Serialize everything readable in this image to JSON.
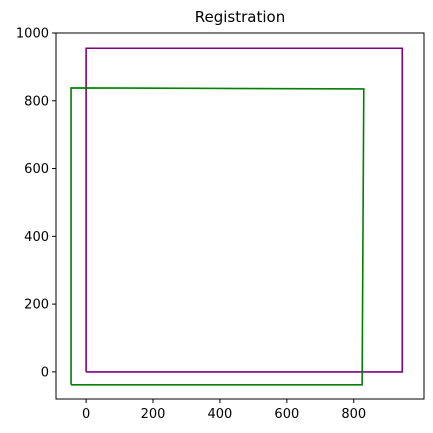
{
  "chart_data": {
    "type": "line",
    "title": "Registration",
    "xlabel": "",
    "ylabel": "",
    "xlim": [
      -90,
      1010
    ],
    "ylim": [
      -80,
      1000
    ],
    "x_ticks": [
      0,
      200,
      400,
      600,
      800
    ],
    "y_ticks": [
      0,
      200,
      400,
      600,
      800,
      1000
    ],
    "grid": false,
    "series": [
      {
        "color": "#800080",
        "x": [
          0,
          945,
          945,
          0,
          0
        ],
        "y": [
          0,
          0,
          955,
          955,
          0
        ]
      },
      {
        "color": "#008000",
        "x": [
          -45,
          825,
          830,
          -45,
          -45
        ],
        "y": [
          -38,
          -38,
          835,
          838,
          -38
        ]
      }
    ]
  }
}
